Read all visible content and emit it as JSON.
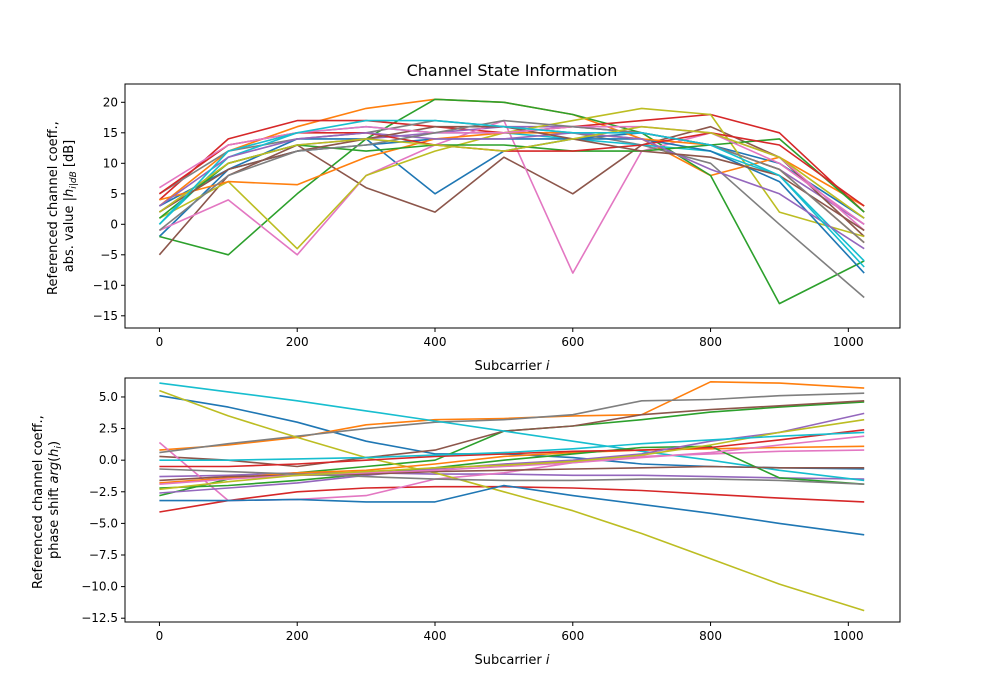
{
  "chart_data": [
    {
      "type": "line",
      "title": "Channel State Information",
      "xlabel": "Subcarrier i",
      "ylabel_line1": "Referenced channel coeff.,",
      "ylabel_line2": "abs. value |h_i|_dB [dB]",
      "xlim": [
        -50,
        1075
      ],
      "ylim": [
        -17,
        23
      ],
      "xticks": [
        "0",
        "200",
        "400",
        "600",
        "800",
        "1000"
      ],
      "yticks": [
        "−15",
        "−10",
        "−5",
        "0",
        "5",
        "10",
        "15",
        "20"
      ],
      "grid": false,
      "x": [
        0,
        100,
        200,
        300,
        400,
        500,
        600,
        700,
        800,
        900,
        1023
      ],
      "series": [
        {
          "color": "#1f77b4",
          "values": [
            -2,
            9,
            14,
            14,
            5,
            12,
            14,
            15,
            13,
            10,
            1
          ]
        },
        {
          "color": "#ff7f0e",
          "values": [
            3,
            12,
            16,
            19,
            20.5,
            20,
            18,
            14,
            8,
            11,
            3
          ]
        },
        {
          "color": "#2ca02c",
          "values": [
            -2,
            -5,
            5,
            14,
            20.5,
            20,
            18,
            15,
            8,
            -13,
            -6
          ]
        },
        {
          "color": "#d62728",
          "values": [
            4,
            14,
            17,
            17,
            16,
            15,
            16,
            17,
            18,
            15,
            2
          ]
        },
        {
          "color": "#9467bd",
          "values": [
            2,
            10,
            13,
            14,
            15,
            16,
            16,
            15,
            13,
            9,
            0
          ]
        },
        {
          "color": "#8c564b",
          "values": [
            -5,
            8,
            13,
            6,
            2,
            11,
            5,
            13,
            16,
            11,
            -2
          ]
        },
        {
          "color": "#e377c2",
          "values": [
            -1,
            4,
            -5,
            8,
            13,
            17,
            -8,
            12,
            15,
            11,
            -1
          ]
        },
        {
          "color": "#7f7f7f",
          "values": [
            5,
            12,
            14,
            15,
            17,
            16,
            15,
            13,
            10,
            0,
            -12
          ]
        },
        {
          "color": "#bcbd22",
          "values": [
            1,
            7,
            -4,
            8,
            12,
            15,
            17,
            19,
            18,
            2,
            -2
          ]
        },
        {
          "color": "#17becf",
          "values": [
            0,
            11,
            15,
            16,
            15,
            15,
            14,
            13,
            12,
            8,
            -6
          ]
        },
        {
          "color": "#1f77b4",
          "values": [
            3,
            9,
            12,
            13,
            14,
            14,
            14,
            14,
            12,
            7,
            -8
          ]
        },
        {
          "color": "#ff7f0e",
          "values": [
            4,
            7,
            6.5,
            11,
            14,
            15,
            15,
            14,
            13,
            9,
            -3
          ]
        },
        {
          "color": "#2ca02c",
          "values": [
            1,
            10,
            13,
            12,
            13,
            13,
            12,
            12,
            13,
            14,
            2
          ]
        },
        {
          "color": "#d62728",
          "values": [
            5,
            13,
            15,
            15,
            13,
            12,
            12,
            13,
            15,
            13,
            3
          ]
        },
        {
          "color": "#9467bd",
          "values": [
            3,
            11,
            14,
            15,
            14,
            14,
            15,
            14,
            9,
            5,
            -4
          ]
        },
        {
          "color": "#8c564b",
          "values": [
            2,
            9,
            12,
            14,
            16,
            16,
            14,
            12,
            11,
            8,
            -1
          ]
        },
        {
          "color": "#e377c2",
          "values": [
            6,
            13,
            15,
            16,
            15,
            15,
            16,
            16,
            15,
            10,
            0
          ]
        },
        {
          "color": "#7f7f7f",
          "values": [
            -1,
            8,
            12,
            13,
            15,
            17,
            16,
            15,
            13,
            9,
            -3
          ]
        },
        {
          "color": "#bcbd22",
          "values": [
            2,
            10,
            13,
            14,
            13,
            12,
            14,
            16,
            15,
            11,
            1
          ]
        },
        {
          "color": "#17becf",
          "values": [
            0,
            12,
            15,
            17,
            17,
            16,
            15,
            15,
            13,
            8,
            -7
          ]
        }
      ]
    },
    {
      "type": "line",
      "title": "",
      "xlabel": "Subcarrier i",
      "ylabel_line1": "Referenced channel coeff.,",
      "ylabel_line2": "phase shift arg(h_i)",
      "xlim": [
        -50,
        1075
      ],
      "ylim": [
        -12.8,
        6.5
      ],
      "xticks": [
        "0",
        "200",
        "400",
        "600",
        "800",
        "1000"
      ],
      "yticks": [
        "−12.5",
        "−10.0",
        "−7.5",
        "−5.0",
        "−2.5",
        "0.0",
        "2.5",
        "5.0"
      ],
      "grid": false,
      "x": [
        0,
        100,
        200,
        300,
        400,
        500,
        600,
        700,
        800,
        900,
        1023
      ],
      "series": [
        {
          "color": "#1f77b4",
          "values": [
            5.1,
            4.2,
            3,
            1.5,
            0.5,
            0.5,
            0.2,
            -0.3,
            -0.5,
            -0.6,
            -0.7
          ]
        },
        {
          "color": "#ff7f0e",
          "values": [
            0.8,
            1.2,
            1.8,
            2.8,
            3.2,
            3.3,
            3.5,
            3.6,
            6.2,
            6.1,
            5.7
          ]
        },
        {
          "color": "#2ca02c",
          "values": [
            -2.8,
            -1.5,
            -1,
            -0.5,
            0,
            2.3,
            2.7,
            3.2,
            3.8,
            4.2,
            4.6
          ]
        },
        {
          "color": "#d62728",
          "values": [
            -4.1,
            -3.2,
            -2.5,
            -2.2,
            -2.1,
            -2.1,
            -2.2,
            -2.4,
            -2.7,
            -3,
            -3.3
          ]
        },
        {
          "color": "#9467bd",
          "values": [
            -1.3,
            -1.2,
            -1,
            -1,
            -1.1,
            -1.1,
            -1.2,
            -1.2,
            -1.3,
            -1.4,
            -1.5
          ]
        },
        {
          "color": "#8c564b",
          "values": [
            0.3,
            0,
            -0.5,
            0.2,
            0.8,
            2.3,
            2.7,
            3.6,
            4,
            4.3,
            4.7
          ]
        },
        {
          "color": "#e377c2",
          "values": [
            1.4,
            -3.2,
            -3.1,
            -2.8,
            -1.5,
            -1,
            -0.2,
            0.3,
            0.5,
            0.7,
            0.8
          ]
        },
        {
          "color": "#7f7f7f",
          "values": [
            0.6,
            1.3,
            1.9,
            2.5,
            3,
            3.2,
            3.6,
            4.7,
            4.8,
            5.1,
            5.3
          ]
        },
        {
          "color": "#bcbd22",
          "values": [
            5.5,
            3.5,
            1.8,
            0.2,
            -1,
            -2.5,
            -4,
            -5.8,
            -7.8,
            -9.8,
            -11.9
          ]
        },
        {
          "color": "#17becf",
          "values": [
            6.1,
            5.4,
            4.7,
            3.9,
            3.1,
            2.3,
            1.5,
            0.7,
            0,
            -0.8,
            -1.6
          ]
        },
        {
          "color": "#1f77b4",
          "values": [
            -3.2,
            -3.2,
            -3.1,
            -3.3,
            -3.3,
            -2,
            -2.8,
            -3.5,
            -4.2,
            -5,
            -5.9
          ]
        },
        {
          "color": "#ff7f0e",
          "values": [
            -1.8,
            -1.4,
            -1,
            -0.8,
            -0.3,
            0.3,
            0.6,
            0.8,
            0.9,
            1,
            1.1
          ]
        },
        {
          "color": "#2ca02c",
          "values": [
            -2.2,
            -2,
            -1.6,
            -1.1,
            -0.6,
            0,
            0.5,
            1,
            1.1,
            -1.4,
            -1.9
          ]
        },
        {
          "color": "#d62728",
          "values": [
            -0.5,
            -0.5,
            -0.3,
            0,
            0.3,
            0.5,
            0.7,
            0.8,
            1,
            1.6,
            2.4
          ]
        },
        {
          "color": "#9467bd",
          "values": [
            -2.6,
            -2.2,
            -1.8,
            -1.2,
            -0.7,
            -0.3,
            0,
            0.5,
            1.5,
            2.2,
            3.7
          ]
        },
        {
          "color": "#8c564b",
          "values": [
            -1.6,
            -1.3,
            -1.2,
            -1.1,
            -0.9,
            -0.8,
            -0.7,
            -0.6,
            -0.5,
            -0.6,
            -0.6
          ]
        },
        {
          "color": "#e377c2",
          "values": [
            -1.9,
            -1.5,
            -1.2,
            -1,
            -0.8,
            -0.5,
            -0.2,
            0.2,
            0.6,
            1.2,
            1.9
          ]
        },
        {
          "color": "#7f7f7f",
          "values": [
            -0.7,
            -0.9,
            -1.1,
            -1.3,
            -1.5,
            -1.6,
            -1.6,
            -1.5,
            -1.5,
            -1.6,
            -1.9
          ]
        },
        {
          "color": "#bcbd22",
          "values": [
            -2.3,
            -1.7,
            -1.2,
            -0.9,
            -0.6,
            -0.4,
            -0.1,
            0.4,
            1.2,
            2.2,
            3.2
          ]
        },
        {
          "color": "#17becf",
          "values": [
            0,
            0,
            0.1,
            0.2,
            0.4,
            0.6,
            0.9,
            1.3,
            1.6,
            1.9,
            2.2
          ]
        }
      ]
    }
  ]
}
